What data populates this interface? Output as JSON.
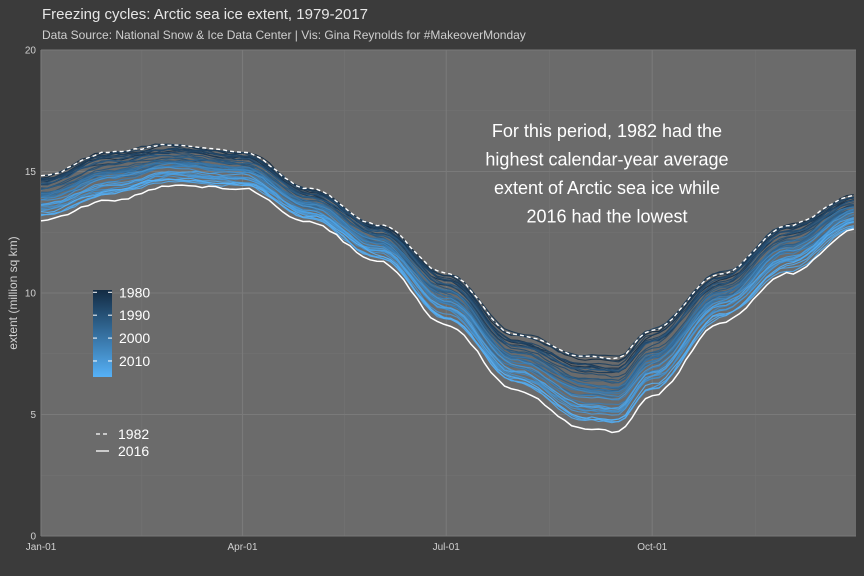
{
  "chart_data": {
    "type": "line",
    "title": "Freezing cycles: Arctic sea ice extent, 1979-2017",
    "subtitle": "Data Source: National Snow & Ice Data Center | Vis: Gina Reynolds for #MakeoverMonday",
    "xlabel": "",
    "ylabel": "extent (million sq km)",
    "ylim": [
      0,
      20
    ],
    "y_ticks": [
      0,
      5,
      10,
      15,
      20
    ],
    "x_tick_labels": [
      "Jan-01",
      "Apr-01",
      "Jul-01",
      "Oct-01"
    ],
    "x_tick_days": [
      1,
      91,
      182,
      274
    ],
    "x_range_days": [
      1,
      365
    ],
    "grid": true,
    "annotation": [
      "For this period, 1982 had the",
      "highest calendar-year average",
      "extent of Arctic sea ice while",
      "2016 had the lowest"
    ],
    "color_scale": {
      "labels": [
        "1980",
        "1990",
        "2000",
        "2010"
      ],
      "years": [
        1980,
        1990,
        2000,
        2010
      ],
      "range": [
        1979,
        2017
      ],
      "low_color": "#132b43",
      "high_color": "#56b1f7"
    },
    "highlight_legend": [
      {
        "label": "1982",
        "style": "dashed",
        "color": "#ffffff"
      },
      {
        "label": "2016",
        "style": "solid",
        "color": "#ffffff"
      }
    ],
    "series_summary": {
      "x_days": [
        1,
        32,
        60,
        91,
        121,
        152,
        182,
        213,
        244,
        258,
        274,
        305,
        335,
        365
      ],
      "max_year_1982": [
        14.8,
        15.8,
        16.1,
        15.8,
        14.3,
        12.8,
        10.8,
        8.3,
        7.4,
        7.3,
        8.5,
        10.8,
        12.8,
        14.0
      ],
      "min_year_2016": [
        13.0,
        13.8,
        14.4,
        14.3,
        12.9,
        11.3,
        8.7,
        6.0,
        4.4,
        4.3,
        5.8,
        8.8,
        10.8,
        12.6
      ]
    },
    "series_count_note": ""
  }
}
